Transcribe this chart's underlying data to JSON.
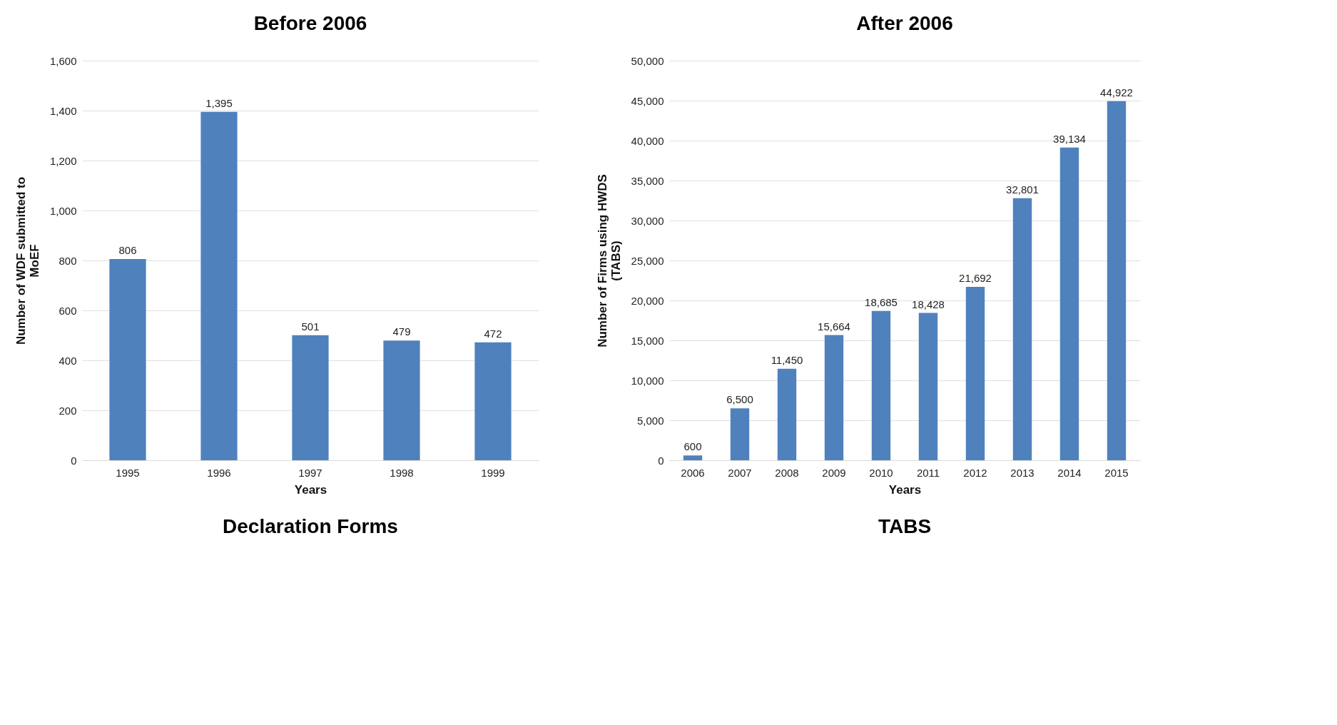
{
  "chart_data": [
    {
      "type": "bar",
      "title": "Before 2006",
      "xlabel": "Years",
      "ylabel": "Number of  WDF submitted to MoEF",
      "annotations": [
        "Declaration Forms"
      ],
      "categories": [
        "1995",
        "1996",
        "1997",
        "1998",
        "1999"
      ],
      "values": [
        806,
        1395,
        501,
        479,
        472
      ],
      "color": "#4f81bd",
      "data_labels": true,
      "value_labels": [
        "806",
        "1,395",
        "501",
        "479",
        "472"
      ],
      "ylim": [
        0,
        1600
      ],
      "yticks": [
        0,
        {
          "value": 200,
          "label": "200"
        },
        {
          "value": 400,
          "label": "400"
        },
        {
          "value": 600,
          "label": "600"
        },
        {
          "value": 800,
          "label": "800"
        },
        {
          "value": 1000,
          "label": "1,000"
        },
        {
          "value": 1200,
          "label": "1,200"
        },
        {
          "value": 1400,
          "label": "1,400"
        },
        {
          "value": 1600,
          "label": "1,600"
        }
      ],
      "grid": "y"
    },
    {
      "type": "bar",
      "title": "After 2006",
      "xlabel": "Years",
      "ylabel": "Number of Firms using HWDS (TABS)",
      "annotations": [
        "TABS"
      ],
      "categories": [
        "2006",
        "2007",
        "2008",
        "2009",
        "2010",
        "2011",
        "2012",
        "2013",
        "2014",
        "2015"
      ],
      "values": [
        600,
        6500,
        11450,
        15664,
        18685,
        18428,
        21692,
        32801,
        39134,
        44922
      ],
      "color": "#4f81bd",
      "data_labels": true,
      "value_labels": [
        "600",
        "6,500",
        "11,450",
        "15,664",
        "18,685",
        "18,428",
        "21,692",
        "32,801",
        "39,134",
        "44,922"
      ],
      "ylim": [
        0,
        50000
      ],
      "yticks": [
        0,
        {
          "value": 5000,
          "label": "5,000"
        },
        {
          "value": 10000,
          "label": "10,000"
        },
        {
          "value": 15000,
          "label": "15,000"
        },
        {
          "value": 20000,
          "label": "20,000"
        },
        {
          "value": 25000,
          "label": "25,000"
        },
        {
          "value": 30000,
          "label": "30,000"
        },
        {
          "value": 35000,
          "label": "35,000"
        },
        {
          "value": 40000,
          "label": "40,000"
        },
        {
          "value": 45000,
          "label": "45,000"
        },
        {
          "value": 50000,
          "label": "50,000"
        }
      ],
      "grid": "y"
    }
  ]
}
